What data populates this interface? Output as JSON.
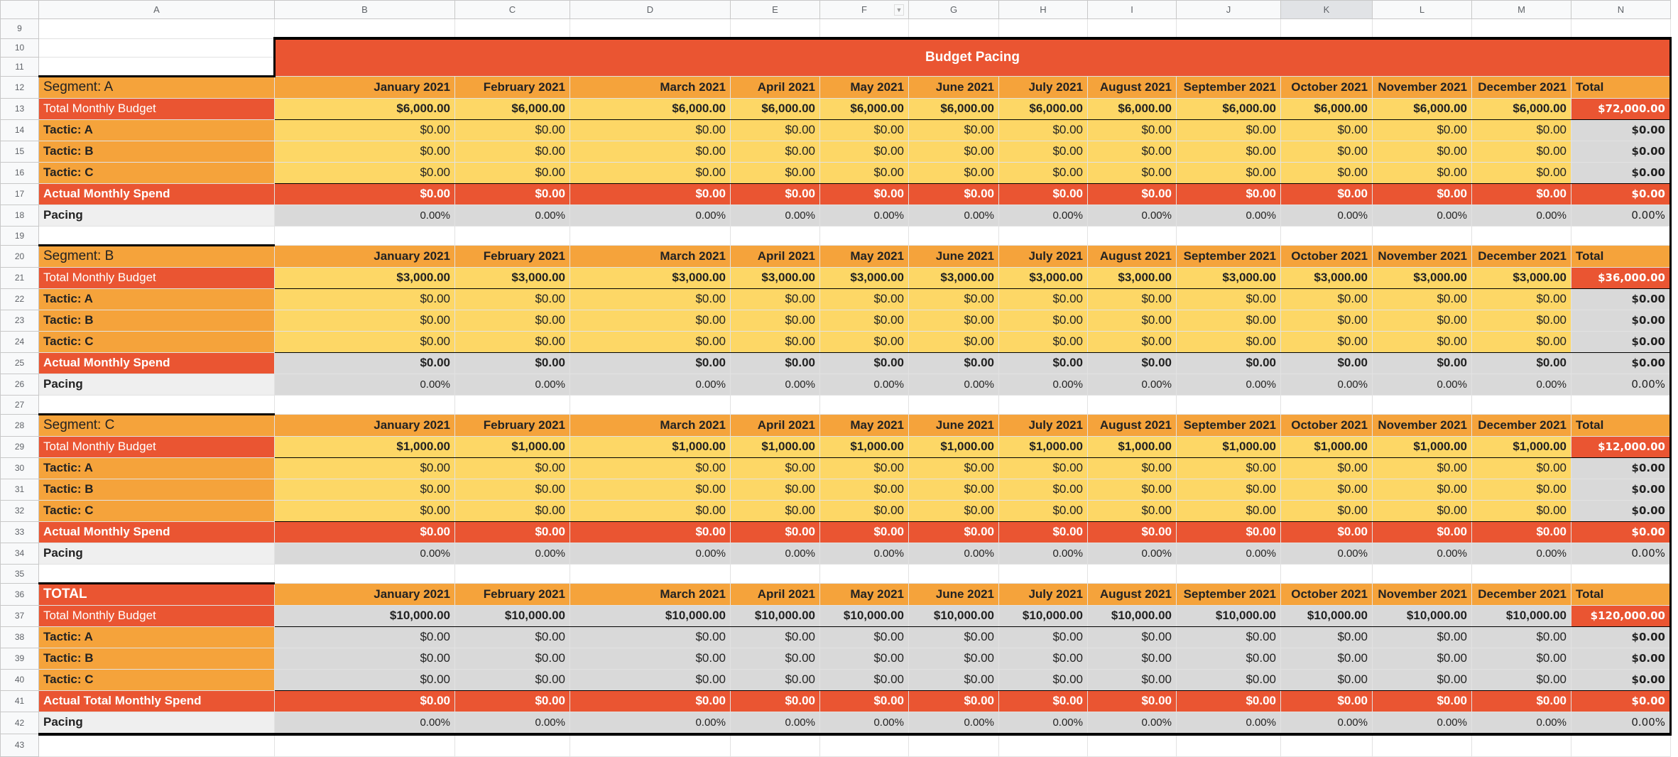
{
  "columns": [
    "A",
    "B",
    "C",
    "D",
    "E",
    "F",
    "G",
    "H",
    "I",
    "J",
    "K",
    "L",
    "M",
    "N"
  ],
  "selected_column": "K",
  "filter_column": "F",
  "row_numbers": {
    "first": 9,
    "last": 43
  },
  "title": "Budget Pacing",
  "months": [
    "January 2021",
    "February 2021",
    "March 2021",
    "April 2021",
    "May 2021",
    "June 2021",
    "July 2021",
    "August 2021",
    "September 2021",
    "October 2021",
    "November 2021",
    "December 2021"
  ],
  "total_header": "Total",
  "colors": {
    "red": "#ea5532",
    "orange": "#f5a33b",
    "yellow": "#fdd766",
    "grey": "#d9d9d9"
  },
  "sections": [
    {
      "header": "Segment: A",
      "budget_label": "Total Monthly Budget",
      "budget": [
        "$6,000.00",
        "$6,000.00",
        "$6,000.00",
        "$6,000.00",
        "$6,000.00",
        "$6,000.00",
        "$6,000.00",
        "$6,000.00",
        "$6,000.00",
        "$6,000.00",
        "$6,000.00",
        "$6,000.00"
      ],
      "budget_total": "$72,000.00",
      "tactics": [
        {
          "label": "Tactic: A",
          "values": [
            "$0.00",
            "$0.00",
            "$0.00",
            "$0.00",
            "$0.00",
            "$0.00",
            "$0.00",
            "$0.00",
            "$0.00",
            "$0.00",
            "$0.00",
            "$0.00"
          ],
          "total": "$0.00"
        },
        {
          "label": "Tactic: B",
          "values": [
            "$0.00",
            "$0.00",
            "$0.00",
            "$0.00",
            "$0.00",
            "$0.00",
            "$0.00",
            "$0.00",
            "$0.00",
            "$0.00",
            "$0.00",
            "$0.00"
          ],
          "total": "$0.00"
        },
        {
          "label": "Tactic: C",
          "values": [
            "$0.00",
            "$0.00",
            "$0.00",
            "$0.00",
            "$0.00",
            "$0.00",
            "$0.00",
            "$0.00",
            "$0.00",
            "$0.00",
            "$0.00",
            "$0.00"
          ],
          "total": "$0.00"
        }
      ],
      "spend_label": "Actual Monthly Spend",
      "spend": [
        "$0.00",
        "$0.00",
        "$0.00",
        "$0.00",
        "$0.00",
        "$0.00",
        "$0.00",
        "$0.00",
        "$0.00",
        "$0.00",
        "$0.00",
        "$0.00"
      ],
      "spend_total": "$0.00",
      "pacing_label": "Pacing",
      "pacing": [
        "0.00%",
        "0.00%",
        "0.00%",
        "0.00%",
        "0.00%",
        "0.00%",
        "0.00%",
        "0.00%",
        "0.00%",
        "0.00%",
        "0.00%",
        "0.00%"
      ],
      "pacing_total": "0.00%"
    },
    {
      "header": "Segment: B",
      "budget_label": "Total Monthly Budget",
      "budget": [
        "$3,000.00",
        "$3,000.00",
        "$3,000.00",
        "$3,000.00",
        "$3,000.00",
        "$3,000.00",
        "$3,000.00",
        "$3,000.00",
        "$3,000.00",
        "$3,000.00",
        "$3,000.00",
        "$3,000.00"
      ],
      "budget_total": "$36,000.00",
      "tactics": [
        {
          "label": "Tactic: A",
          "values": [
            "$0.00",
            "$0.00",
            "$0.00",
            "$0.00",
            "$0.00",
            "$0.00",
            "$0.00",
            "$0.00",
            "$0.00",
            "$0.00",
            "$0.00",
            "$0.00"
          ],
          "total": "$0.00"
        },
        {
          "label": "Tactic: B",
          "values": [
            "$0.00",
            "$0.00",
            "$0.00",
            "$0.00",
            "$0.00",
            "$0.00",
            "$0.00",
            "$0.00",
            "$0.00",
            "$0.00",
            "$0.00",
            "$0.00"
          ],
          "total": "$0.00"
        },
        {
          "label": "Tactic: C",
          "values": [
            "$0.00",
            "$0.00",
            "$0.00",
            "$0.00",
            "$0.00",
            "$0.00",
            "$0.00",
            "$0.00",
            "$0.00",
            "$0.00",
            "$0.00",
            "$0.00"
          ],
          "total": "$0.00"
        }
      ],
      "spend_label": "Actual Monthly Spend",
      "spend": [
        "$0.00",
        "$0.00",
        "$0.00",
        "$0.00",
        "$0.00",
        "$0.00",
        "$0.00",
        "$0.00",
        "$0.00",
        "$0.00",
        "$0.00",
        "$0.00"
      ],
      "spend_total": "$0.00",
      "pacing_label": "Pacing",
      "pacing": [
        "0.00%",
        "0.00%",
        "0.00%",
        "0.00%",
        "0.00%",
        "0.00%",
        "0.00%",
        "0.00%",
        "0.00%",
        "0.00%",
        "0.00%",
        "0.00%"
      ],
      "pacing_total": "0.00%"
    },
    {
      "header": "Segment: C",
      "budget_label": "Total Monthly Budget",
      "budget": [
        "$1,000.00",
        "$1,000.00",
        "$1,000.00",
        "$1,000.00",
        "$1,000.00",
        "$1,000.00",
        "$1,000.00",
        "$1,000.00",
        "$1,000.00",
        "$1,000.00",
        "$1,000.00",
        "$1,000.00"
      ],
      "budget_total": "$12,000.00",
      "tactics": [
        {
          "label": "Tactic: A",
          "values": [
            "$0.00",
            "$0.00",
            "$0.00",
            "$0.00",
            "$0.00",
            "$0.00",
            "$0.00",
            "$0.00",
            "$0.00",
            "$0.00",
            "$0.00",
            "$0.00"
          ],
          "total": "$0.00"
        },
        {
          "label": "Tactic: B",
          "values": [
            "$0.00",
            "$0.00",
            "$0.00",
            "$0.00",
            "$0.00",
            "$0.00",
            "$0.00",
            "$0.00",
            "$0.00",
            "$0.00",
            "$0.00",
            "$0.00"
          ],
          "total": "$0.00"
        },
        {
          "label": "Tactic: C",
          "values": [
            "$0.00",
            "$0.00",
            "$0.00",
            "$0.00",
            "$0.00",
            "$0.00",
            "$0.00",
            "$0.00",
            "$0.00",
            "$0.00",
            "$0.00",
            "$0.00"
          ],
          "total": "$0.00"
        }
      ],
      "spend_label": "Actual Monthly Spend",
      "spend": [
        "$0.00",
        "$0.00",
        "$0.00",
        "$0.00",
        "$0.00",
        "$0.00",
        "$0.00",
        "$0.00",
        "$0.00",
        "$0.00",
        "$0.00",
        "$0.00"
      ],
      "spend_total": "$0.00",
      "pacing_label": "Pacing",
      "pacing": [
        "0.00%",
        "0.00%",
        "0.00%",
        "0.00%",
        "0.00%",
        "0.00%",
        "0.00%",
        "0.00%",
        "0.00%",
        "0.00%",
        "0.00%",
        "0.00%"
      ],
      "pacing_total": "0.00%"
    },
    {
      "header": "TOTAL",
      "budget_label": "Total Monthly Budget",
      "budget": [
        "$10,000.00",
        "$10,000.00",
        "$10,000.00",
        "$10,000.00",
        "$10,000.00",
        "$10,000.00",
        "$10,000.00",
        "$10,000.00",
        "$10,000.00",
        "$10,000.00",
        "$10,000.00",
        "$10,000.00"
      ],
      "budget_total": "$120,000.00",
      "tactics": [
        {
          "label": "Tactic: A",
          "values": [
            "$0.00",
            "$0.00",
            "$0.00",
            "$0.00",
            "$0.00",
            "$0.00",
            "$0.00",
            "$0.00",
            "$0.00",
            "$0.00",
            "$0.00",
            "$0.00"
          ],
          "total": "$0.00"
        },
        {
          "label": "Tactic: B",
          "values": [
            "$0.00",
            "$0.00",
            "$0.00",
            "$0.00",
            "$0.00",
            "$0.00",
            "$0.00",
            "$0.00",
            "$0.00",
            "$0.00",
            "$0.00",
            "$0.00"
          ],
          "total": "$0.00"
        },
        {
          "label": "Tactic: C",
          "values": [
            "$0.00",
            "$0.00",
            "$0.00",
            "$0.00",
            "$0.00",
            "$0.00",
            "$0.00",
            "$0.00",
            "$0.00",
            "$0.00",
            "$0.00",
            "$0.00"
          ],
          "total": "$0.00"
        }
      ],
      "spend_label": "Actual Total Monthly Spend",
      "spend": [
        "$0.00",
        "$0.00",
        "$0.00",
        "$0.00",
        "$0.00",
        "$0.00",
        "$0.00",
        "$0.00",
        "$0.00",
        "$0.00",
        "$0.00",
        "$0.00"
      ],
      "spend_total": "$0.00",
      "pacing_label": "Pacing",
      "pacing": [
        "0.00%",
        "0.00%",
        "0.00%",
        "0.00%",
        "0.00%",
        "0.00%",
        "0.00%",
        "0.00%",
        "0.00%",
        "0.00%",
        "0.00%",
        "0.00%"
      ],
      "pacing_total": "0.00%"
    }
  ]
}
